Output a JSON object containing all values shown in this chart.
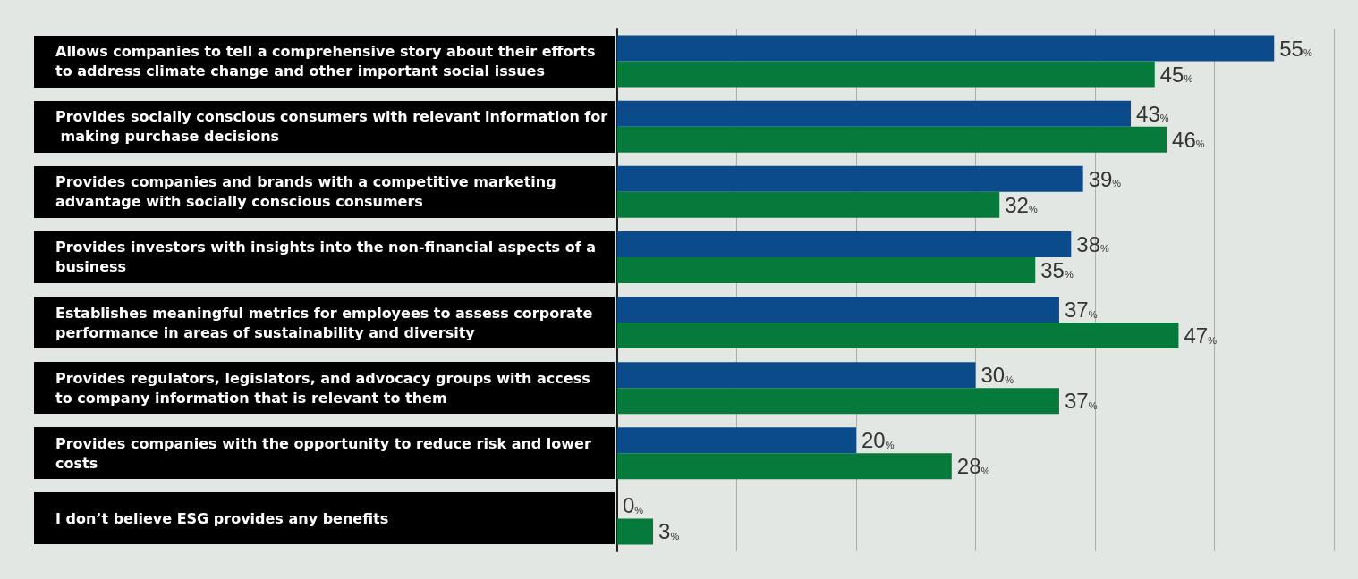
{
  "chart_data": {
    "type": "bar",
    "orientation": "horizontal",
    "categories": [
      "Allows companies to tell a comprehensive story about their efforts to address climate change and other important social issues",
      "Provides socially conscious consumers with relevant information for making purchase decisions",
      "Provides companies and brands with a competitive marketing advantage with socially conscious consumers",
      "Provides investors with insights into the non-financial aspects of a business",
      "Establishes meaningful metrics for employees to assess corporate performance in areas of sustainability and diversity",
      "Provides regulators, legislators, and advocacy groups with access to company information that is relevant to them",
      "Provides companies with the opportunity to reduce risk and lower costs",
      "I don’t believe ESG provides any benefits"
    ],
    "series": [
      {
        "color": "#0b4a8b",
        "values": [
          55,
          43,
          39,
          38,
          37,
          30,
          20,
          0
        ],
        "value_labels": [
          "55%",
          "43%",
          "39%",
          "38%",
          "37%",
          "30%",
          "20%",
          "0%"
        ]
      },
      {
        "color": "#067a3a",
        "values": [
          45,
          46,
          32,
          35,
          47,
          37,
          28,
          3
        ],
        "value_labels": [
          "45%",
          "46%",
          "32%",
          "35%",
          "47%",
          "37%",
          "28%",
          "3%"
        ]
      }
    ],
    "xlim": [
      0,
      60
    ],
    "xticks": [
      {
        "value": 0,
        "label": null
      },
      {
        "value": 10,
        "label": null
      },
      {
        "value": 20,
        "label": null
      },
      {
        "value": 30,
        "label": null
      },
      {
        "value": 40,
        "label": null
      },
      {
        "value": 50,
        "label": null
      },
      {
        "value": 60,
        "label": null
      }
    ],
    "grid": "x",
    "tick_labels": "y"
  }
}
